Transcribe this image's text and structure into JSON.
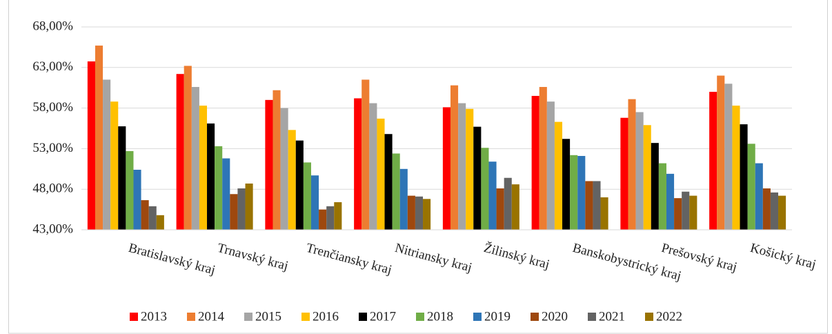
{
  "chart_data": {
    "type": "bar",
    "categories": [
      "Bratislavský kraj",
      "Trnavský kraj",
      "Trenčiansky kraj",
      "Nitriansky kraj",
      "Žilinský kraj",
      "Banskobystrický kraj",
      "Prešovský kraj",
      "Košický kraj"
    ],
    "series": [
      {
        "name": "2013",
        "color": "#ff0000",
        "values": [
          63.75,
          62.2,
          59.0,
          59.2,
          58.1,
          59.5,
          56.8,
          60.0
        ]
      },
      {
        "name": "2014",
        "color": "#ed7d31",
        "values": [
          65.7,
          63.2,
          60.2,
          61.5,
          60.8,
          60.6,
          59.1,
          62.0
        ]
      },
      {
        "name": "2015",
        "color": "#a5a5a5",
        "values": [
          61.5,
          60.6,
          58.0,
          58.6,
          58.6,
          58.8,
          57.5,
          61.0
        ]
      },
      {
        "name": "2016",
        "color": "#ffc000",
        "values": [
          58.8,
          58.3,
          55.3,
          56.7,
          57.9,
          56.3,
          55.9,
          58.3
        ]
      },
      {
        "name": "2017",
        "color": "#000000",
        "values": [
          55.75,
          56.1,
          54.0,
          54.8,
          55.7,
          54.2,
          53.7,
          56.0
        ]
      },
      {
        "name": "2018",
        "color": "#70ad47",
        "values": [
          52.7,
          53.3,
          51.3,
          52.4,
          53.1,
          52.2,
          51.2,
          53.6
        ]
      },
      {
        "name": "2019",
        "color": "#2e75b6",
        "values": [
          50.4,
          51.8,
          49.7,
          50.5,
          51.4,
          52.1,
          49.9,
          51.2
        ]
      },
      {
        "name": "2020",
        "color": "#9e480e",
        "values": [
          46.65,
          47.4,
          45.5,
          47.2,
          48.1,
          49.0,
          46.9,
          48.1
        ]
      },
      {
        "name": "2021",
        "color": "#636363",
        "values": [
          45.9,
          48.1,
          45.9,
          47.1,
          49.4,
          49.0,
          47.7,
          47.6
        ]
      },
      {
        "name": "2022",
        "color": "#997300",
        "values": [
          44.8,
          48.7,
          46.4,
          46.8,
          48.6,
          47.0,
          47.2,
          47.2
        ]
      }
    ],
    "ylim": [
      43,
      68
    ],
    "yticks": [
      {
        "value": 43,
        "label": "43,00%"
      },
      {
        "value": 48,
        "label": "48,00%"
      },
      {
        "value": 53,
        "label": "53,00%"
      },
      {
        "value": 58,
        "label": "58,00%"
      },
      {
        "value": 63,
        "label": "63,00%"
      },
      {
        "value": 68,
        "label": "68,00%"
      }
    ],
    "grid": true,
    "legend": "bottom"
  }
}
